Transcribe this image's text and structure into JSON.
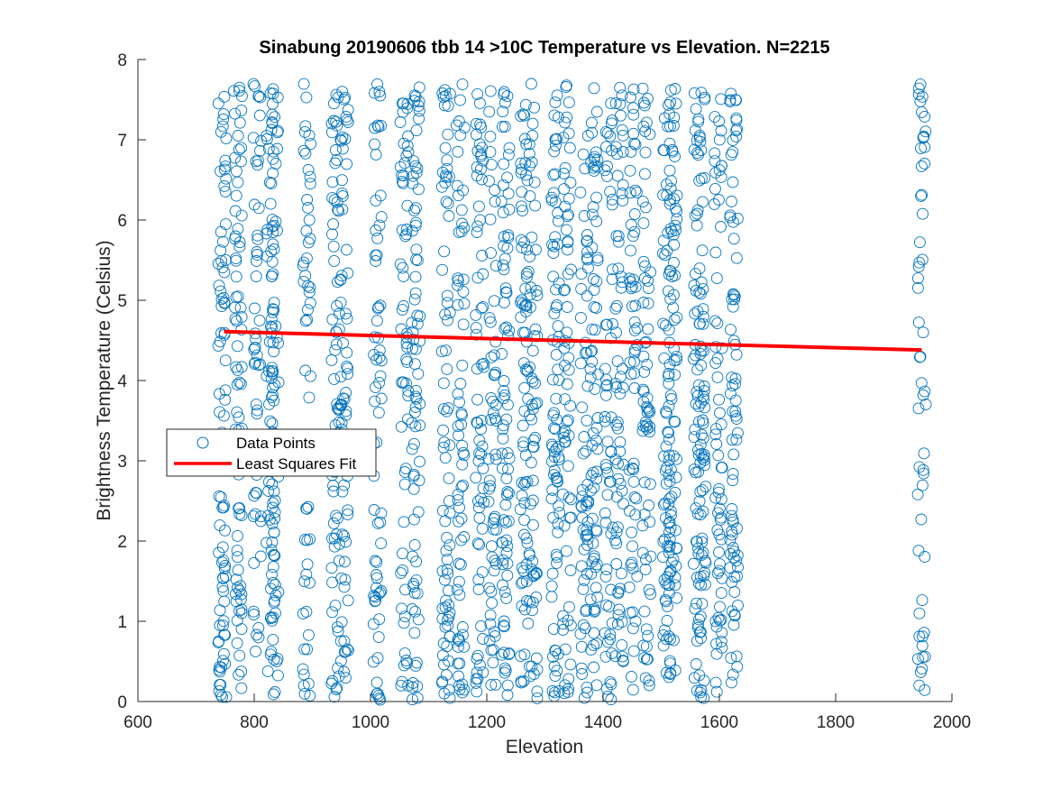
{
  "chart_data": {
    "type": "scatter",
    "title": "Sinabung 20190606 tbb 14 >10C Temperature vs Elevation. N=2215",
    "xlabel": "Elevation",
    "ylabel": "Brightness Temperature (Celsius)",
    "xlim": [
      600,
      2000
    ],
    "ylim": [
      0,
      8
    ],
    "xticks": [
      600,
      800,
      1000,
      1200,
      1400,
      1600,
      1800,
      2000
    ],
    "yticks": [
      0,
      1,
      2,
      3,
      4,
      5,
      6,
      7,
      8
    ],
    "grid": false,
    "legend_position": "middle-left",
    "series": [
      {
        "name": "Data Points",
        "kind": "scatter",
        "color": "#0072bd",
        "elevation_columns": [
          745,
          772,
          805,
          828,
          835,
          890,
          940,
          955,
          1012,
          1058,
          1078,
          1130,
          1155,
          1188,
          1210,
          1232,
          1265,
          1280,
          1318,
          1338,
          1368,
          1385,
          1410,
          1428,
          1452,
          1475,
          1510,
          1520,
          1562,
          1570,
          1598,
          1625,
          1948
        ],
        "temperature_range": [
          0.02,
          7.7
        ],
        "point_count": 2215
      },
      {
        "name": "Least Squares Fit",
        "kind": "line",
        "color": "#ff0000",
        "x": [
          748,
          1948
        ],
        "y": [
          4.61,
          4.38
        ]
      }
    ]
  }
}
